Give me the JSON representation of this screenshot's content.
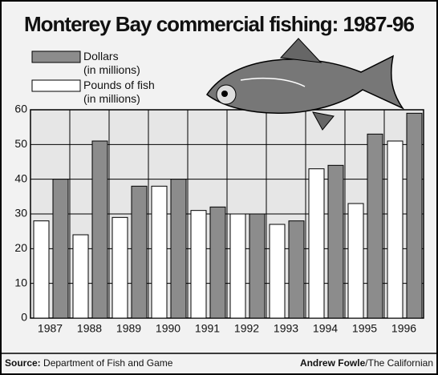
{
  "chart_data": {
    "type": "bar",
    "title": "Monterey Bay commercial fishing: 1987-96",
    "categories": [
      "1987",
      "1988",
      "1989",
      "1990",
      "1991",
      "1992",
      "1993",
      "1994",
      "1995",
      "1996"
    ],
    "series": [
      {
        "name": "Pounds of fish (in millions)",
        "color": "#ffffff",
        "values": [
          28,
          24,
          29,
          38,
          31,
          30,
          27,
          43,
          33,
          51
        ]
      },
      {
        "name": "Dollars (in millions)",
        "color": "#8c8c8c",
        "values": [
          40,
          51,
          38,
          40,
          32,
          30,
          28,
          44,
          53,
          59
        ]
      }
    ],
    "legend_order": [
      1,
      0
    ],
    "ylim": [
      0,
      60
    ],
    "yticks": [
      0,
      10,
      20,
      30,
      40,
      50,
      60
    ],
    "grid": true,
    "source_label": "Source:",
    "source": "Department of Fish and Game",
    "credit_author": "Andrew Fowle",
    "credit_outlet": "/The Californian"
  }
}
